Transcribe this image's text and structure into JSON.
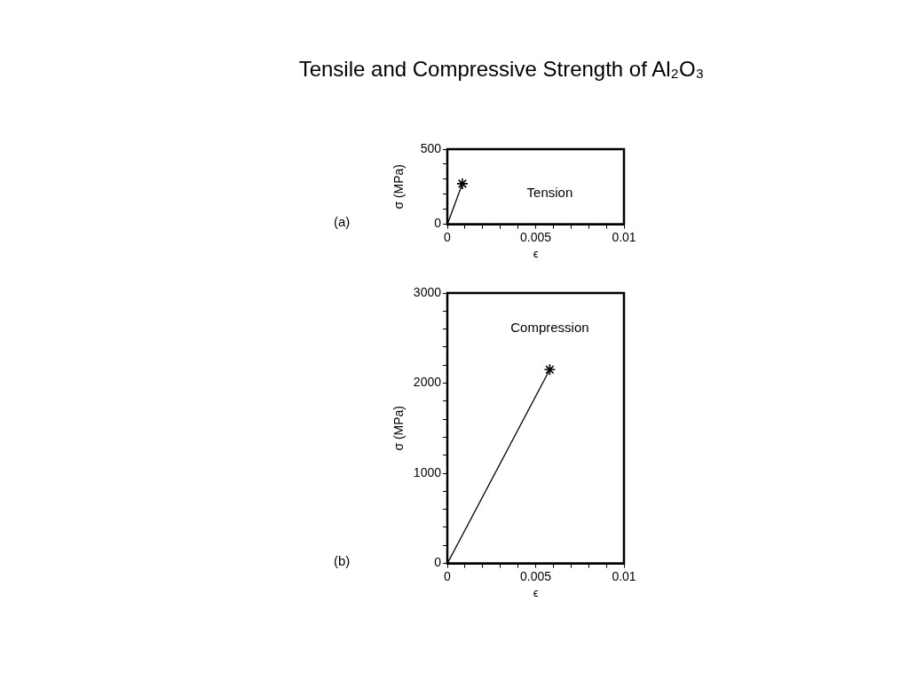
{
  "chart_data": [
    {
      "type": "line",
      "title": "Tensile and Compressive Strength of Al₂O₃",
      "xlabel": "ϵ",
      "ylabel": "σ (MPa)",
      "annotations": [
        "(a)",
        "Tension"
      ],
      "grid": false,
      "xlim": [
        0,
        0.01
      ],
      "xticks": [
        0,
        {
          "value": 0.001,
          "label": null
        },
        {
          "value": 0.002,
          "label": null
        },
        {
          "value": 0.003,
          "label": null
        },
        {
          "value": 0.004,
          "label": null
        },
        0.005,
        {
          "value": 0.006,
          "label": null
        },
        {
          "value": 0.007,
          "label": null
        },
        {
          "value": 0.008,
          "label": null
        },
        {
          "value": 0.009,
          "label": null
        },
        0.01
      ],
      "ylim": [
        0,
        500
      ],
      "yticks": [
        0,
        {
          "value": 100,
          "label": null
        },
        {
          "value": 200,
          "label": null
        },
        {
          "value": 300,
          "label": null
        },
        {
          "value": 400,
          "label": null
        },
        500
      ],
      "series": [
        {
          "type": "line",
          "x": [
            0,
            0.00085
          ],
          "values": [
            0,
            270
          ],
          "color": "#000000",
          "marker": "none"
        },
        {
          "type": "scatter",
          "x": [
            0.00085
          ],
          "values": [
            270
          ],
          "color": "#000000",
          "marker": "cross"
        }
      ]
    },
    {
      "type": "line",
      "xlabel": "ϵ",
      "ylabel": "σ (MPa)",
      "annotations": [
        "(b)",
        "Compression"
      ],
      "grid": false,
      "xlim": [
        0,
        0.01
      ],
      "xticks": [
        0,
        {
          "value": 0.001,
          "label": null
        },
        {
          "value": 0.002,
          "label": null
        },
        {
          "value": 0.003,
          "label": null
        },
        {
          "value": 0.004,
          "label": null
        },
        0.005,
        {
          "value": 0.006,
          "label": null
        },
        {
          "value": 0.007,
          "label": null
        },
        {
          "value": 0.008,
          "label": null
        },
        {
          "value": 0.009,
          "label": null
        },
        0.01
      ],
      "ylim": [
        0,
        3000
      ],
      "yticks": [
        0,
        {
          "value": 200,
          "label": null
        },
        {
          "value": 400,
          "label": null
        },
        {
          "value": 600,
          "label": null
        },
        {
          "value": 800,
          "label": null
        },
        1000,
        {
          "value": 1200,
          "label": null
        },
        {
          "value": 1400,
          "label": null
        },
        {
          "value": 1600,
          "label": null
        },
        {
          "value": 1800,
          "label": null
        },
        2000,
        {
          "value": 2200,
          "label": null
        },
        {
          "value": 2400,
          "label": null
        },
        {
          "value": 2600,
          "label": null
        },
        {
          "value": 2800,
          "label": null
        },
        3000
      ],
      "series": [
        {
          "type": "line",
          "x": [
            0,
            0.0058
          ],
          "values": [
            0,
            2150
          ],
          "color": "#000000",
          "marker": "none"
        },
        {
          "type": "scatter",
          "x": [
            0.0058
          ],
          "values": [
            2150
          ],
          "color": "#000000",
          "marker": "cross"
        }
      ]
    }
  ]
}
